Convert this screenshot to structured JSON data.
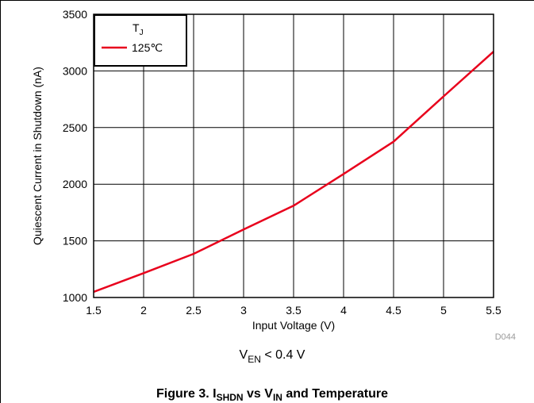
{
  "figure": {
    "condition": {
      "main": "V",
      "sub": "EN",
      "rest": " < 0.4 V"
    },
    "figure_code": "D044",
    "caption": {
      "prefix": "Figure 3. I",
      "sub1": "SHDN",
      "mid": " vs V",
      "sub2": "IN",
      "suffix": " and Temperature"
    }
  },
  "legend": {
    "title_main": "T",
    "title_sub": "J",
    "entry": "125℃",
    "placement": "top-left"
  },
  "colors": {
    "series": "#e8001c",
    "grid": "#000000",
    "frame": "#000000",
    "figure_code": "#9a9a9a"
  },
  "chart_data": {
    "type": "line",
    "xlabel": "Input Voltage (V)",
    "ylabel": "Quiescent Current in Shutdown (nA)",
    "xlim": [
      1.5,
      5.5
    ],
    "ylim": [
      1000,
      3500
    ],
    "x_ticks": [
      1.5,
      2,
      2.5,
      3,
      3.5,
      4,
      4.5,
      5,
      5.5
    ],
    "x_tick_labels": [
      "1.5",
      "2",
      "2.5",
      "3",
      "3.5",
      "4",
      "4.5",
      "5",
      "5.5"
    ],
    "y_ticks": [
      1000,
      1500,
      2000,
      2500,
      3000,
      3500
    ],
    "y_tick_labels": [
      "1000",
      "1500",
      "2000",
      "2500",
      "3000",
      "3500"
    ],
    "grid": true,
    "series": [
      {
        "name": "125℃",
        "x": [
          1.5,
          2,
          2.5,
          3,
          3.5,
          4,
          4.5,
          5,
          5.5
        ],
        "values": [
          1050,
          1215,
          1385,
          1600,
          1810,
          2090,
          2375,
          2775,
          3170
        ]
      }
    ]
  }
}
